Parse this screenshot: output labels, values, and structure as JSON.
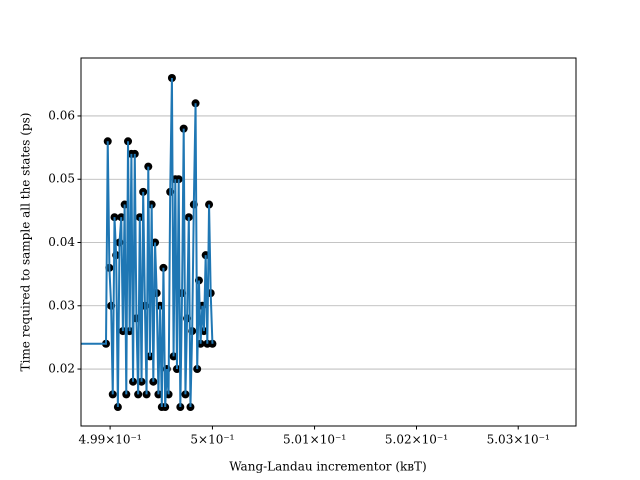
{
  "chart_data": {
    "type": "line",
    "xlabel": "Wang-Landau incrementor (kʙT)",
    "ylabel": "Time required to sample all the states (ps)",
    "x": [
      0.4985,
      0.4985,
      0.49896,
      0.498977,
      0.498993,
      0.49901,
      0.499026,
      0.499043,
      0.499059,
      0.499076,
      0.499092,
      0.499109,
      0.499125,
      0.499142,
      0.499158,
      0.499175,
      0.499191,
      0.499208,
      0.499224,
      0.499241,
      0.499257,
      0.499274,
      0.49929,
      0.499307,
      0.499323,
      0.49934,
      0.499356,
      0.499373,
      0.499389,
      0.499406,
      0.499422,
      0.499439,
      0.499455,
      0.499472,
      0.499488,
      0.499505,
      0.499521,
      0.499538,
      0.499554,
      0.499571,
      0.499587,
      0.499604,
      0.49962,
      0.499637,
      0.499653,
      0.49967,
      0.499686,
      0.499703,
      0.499719,
      0.499736,
      0.499752,
      0.499769,
      0.499785,
      0.499802,
      0.499818,
      0.499835,
      0.499851,
      0.499868,
      0.499884,
      0.499901,
      0.499917,
      0.499934,
      0.49995,
      0.499967,
      0.499983,
      0.5
    ],
    "series": [
      {
        "color": "#1f77b4",
        "marker_color": "#000000",
        "values": [
          0.038,
          0.024,
          0.024,
          0.056,
          0.036,
          0.03,
          0.016,
          0.044,
          0.038,
          0.014,
          0.04,
          0.044,
          0.026,
          0.046,
          0.016,
          0.056,
          0.026,
          0.054,
          0.018,
          0.054,
          0.028,
          0.016,
          0.044,
          0.018,
          0.048,
          0.03,
          0.016,
          0.052,
          0.022,
          0.046,
          0.018,
          0.04,
          0.032,
          0.016,
          0.03,
          0.014,
          0.036,
          0.014,
          0.02,
          0.016,
          0.048,
          0.066,
          0.022,
          0.05,
          0.02,
          0.05,
          0.014,
          0.032,
          0.058,
          0.016,
          0.028,
          0.044,
          0.014,
          0.026,
          0.046,
          0.062,
          0.02,
          0.034,
          0.024,
          0.03,
          0.026,
          0.038,
          0.024,
          0.046,
          0.032,
          0.024
        ]
      }
    ],
    "xscale": "log",
    "xlim": [
      0.498716,
      0.503569
    ],
    "xticks": [
      {
        "value": 0.499,
        "label": "4.99×10⁻¹"
      },
      {
        "value": 0.5,
        "label": "5×10⁻¹"
      },
      {
        "value": 0.501,
        "label": "5.01×10⁻¹"
      },
      {
        "value": 0.502,
        "label": "5.02×10⁻¹"
      },
      {
        "value": 0.503,
        "label": "5.03×10⁻¹"
      }
    ],
    "ylim": [
      0.011,
      0.06916
    ],
    "yticks": [
      0.02,
      0.03,
      0.04,
      0.05,
      0.06
    ],
    "grid": "y"
  }
}
